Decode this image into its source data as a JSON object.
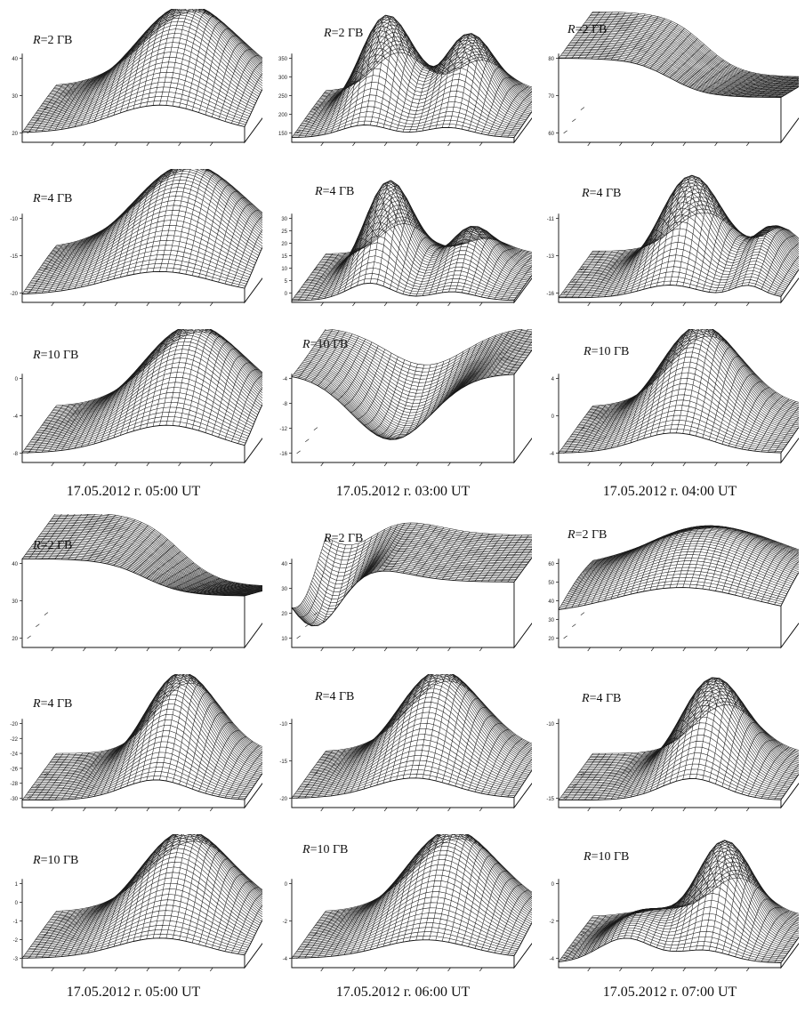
{
  "columns": [
    {
      "caption": "17.05.2012 г. 05:00 UT",
      "panels": [
        {
          "label_var": "R",
          "label_value": "=2 ГВ",
          "z_ticks": [
            "20",
            "30",
            "40"
          ]
        },
        {
          "label_var": "R",
          "label_value": "=4 ГВ",
          "z_ticks": [
            "-20",
            "-15",
            "-10"
          ]
        },
        {
          "label_var": "R",
          "label_value": "=10 ГВ",
          "z_ticks": [
            "-8",
            "-4",
            "0"
          ]
        }
      ]
    },
    {
      "caption": "17.05.2012 г. 03:00 UT",
      "panels": [
        {
          "label_var": "R",
          "label_value": "=2 ГВ",
          "z_ticks": [
            "150",
            "200",
            "250",
            "300",
            "350"
          ]
        },
        {
          "label_var": "R",
          "label_value": "=4 ГВ",
          "z_ticks": [
            "0",
            "5",
            "10",
            "15",
            "20",
            "25",
            "30"
          ]
        },
        {
          "label_var": "R",
          "label_value": "=10 ГВ",
          "z_ticks": [
            "-16",
            "-12",
            "-8",
            "-4"
          ]
        }
      ]
    },
    {
      "caption": "17.05.2012 г. 04:00 UT",
      "panels": [
        {
          "label_var": "R",
          "label_value": "=2 ГВ",
          "z_ticks": [
            "60",
            "70",
            "80"
          ]
        },
        {
          "label_var": "R",
          "label_value": "=4 ГВ",
          "z_ticks": [
            "-16",
            "-13",
            "-11"
          ]
        },
        {
          "label_var": "R",
          "label_value": "=10 ГВ",
          "z_ticks": [
            "-4",
            "0",
            "4"
          ]
        }
      ]
    },
    {
      "caption": "17.05.2012 г. 05:00 UT",
      "panels": [
        {
          "label_var": "R",
          "label_value": "=2 ГВ",
          "z_ticks": [
            "20",
            "30",
            "40"
          ]
        },
        {
          "label_var": "R",
          "label_value": "=4 ГВ",
          "z_ticks": [
            "-30",
            "-28",
            "-26",
            "-24",
            "-22",
            "-20"
          ]
        },
        {
          "label_var": "R",
          "label_value": "=10 ГВ",
          "z_ticks": [
            "-3",
            "-2",
            "-1",
            "0",
            "1"
          ]
        }
      ]
    },
    {
      "caption": "17.05.2012 г. 06:00 UT",
      "panels": [
        {
          "label_var": "R",
          "label_value": "=2 ГВ",
          "z_ticks": [
            "10",
            "20",
            "30",
            "40"
          ]
        },
        {
          "label_var": "R",
          "label_value": "=4 ГВ",
          "z_ticks": [
            "-20",
            "-15",
            "-10"
          ]
        },
        {
          "label_var": "R",
          "label_value": "=10 ГВ",
          "z_ticks": [
            "-4",
            "-2",
            "0"
          ]
        }
      ]
    },
    {
      "caption": "17.05.2012 г. 07:00 UT",
      "panels": [
        {
          "label_var": "R",
          "label_value": "=2 ГВ",
          "z_ticks": [
            "20",
            "30",
            "40",
            "50",
            "60"
          ]
        },
        {
          "label_var": "R",
          "label_value": "=4 ГВ",
          "z_ticks": [
            "-15",
            "-10"
          ]
        },
        {
          "label_var": "R",
          "label_value": "=10 ГВ",
          "z_ticks": [
            "-4",
            "-2",
            "0"
          ]
        }
      ]
    }
  ]
}
